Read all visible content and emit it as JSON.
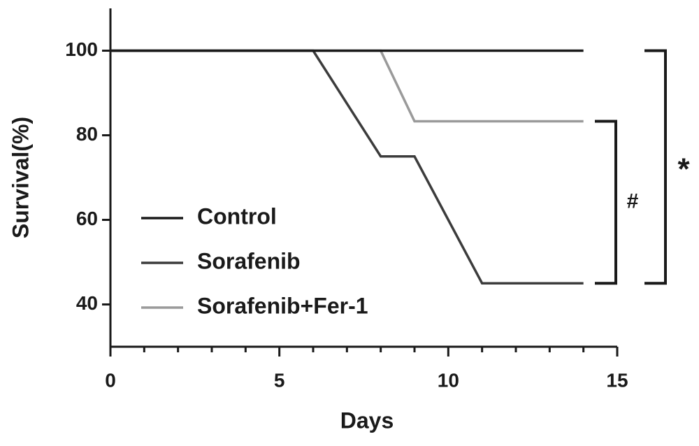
{
  "chart_data": {
    "type": "line",
    "xlabel": "Days",
    "ylabel": "Survival(%)",
    "series": [
      {
        "name": "Control",
        "color": "#1a1a1a",
        "x": [
          0,
          14
        ],
        "values": [
          100,
          100
        ]
      },
      {
        "name": "Sorafenib",
        "color": "#3c3c3c",
        "x": [
          0,
          6,
          8,
          9,
          11,
          14
        ],
        "values": [
          100,
          100,
          75,
          75,
          45,
          45
        ]
      },
      {
        "name": "Sorafenib+Fer-1",
        "color": "#9a9a9a",
        "x": [
          0,
          8,
          9,
          14
        ],
        "values": [
          100,
          100,
          83.3,
          83.3
        ]
      }
    ],
    "xlim": [
      0,
      15
    ],
    "xticks": [
      0,
      5,
      10,
      15
    ],
    "xminorticks": [
      1,
      2,
      3,
      4,
      6,
      7,
      8,
      9,
      11,
      12,
      13,
      14
    ],
    "ylim": [
      30,
      110
    ],
    "yticks": [
      40,
      60,
      80,
      100
    ],
    "annotations": [
      "#",
      "*"
    ],
    "legend": "lower-left",
    "grid": false
  }
}
